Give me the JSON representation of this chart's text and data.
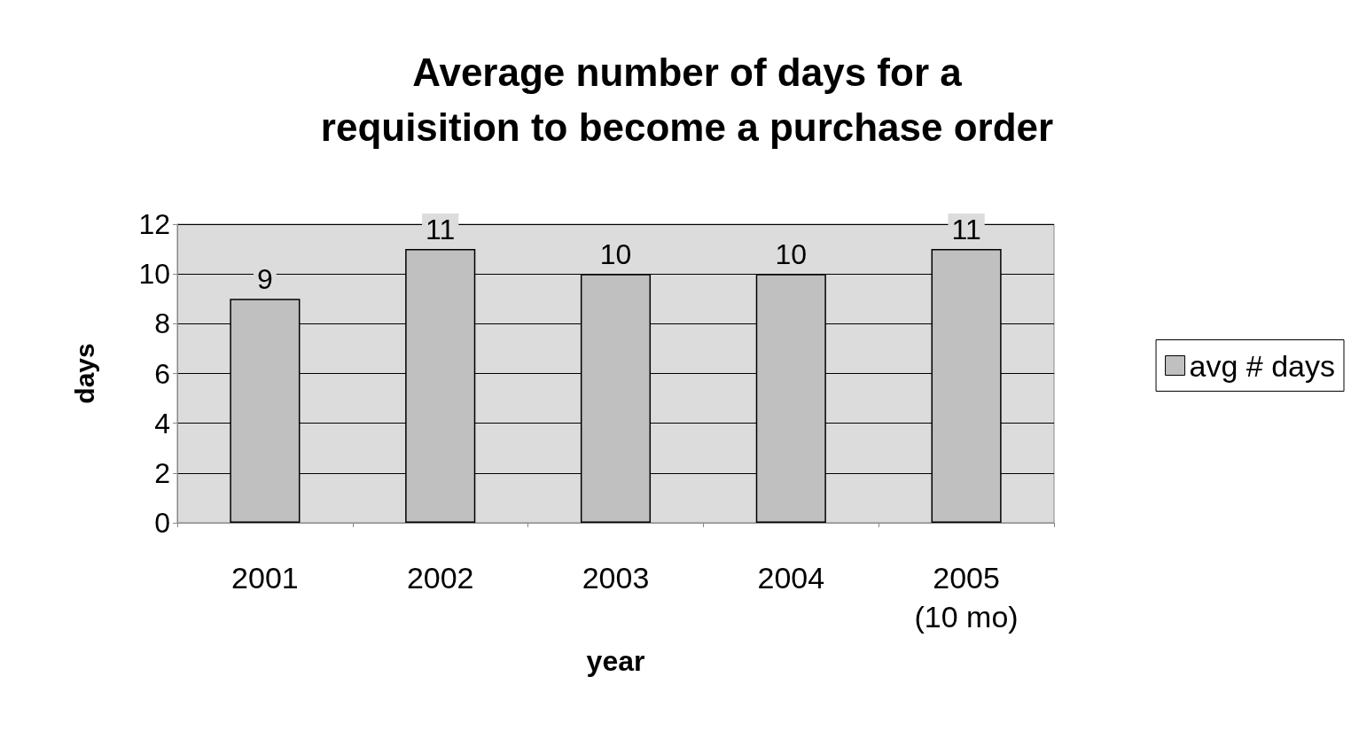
{
  "chart_data": {
    "type": "bar",
    "title": "Average number of days for a\nrequisition to become a purchase order",
    "xlabel": "year",
    "ylabel": "days",
    "categories": [
      "2001",
      "2002",
      "2003",
      "2004",
      "2005\n(10 mo)"
    ],
    "series": [
      {
        "name": "avg # days",
        "color": "#c0c0c0",
        "values": [
          9,
          11,
          10,
          10,
          11
        ]
      }
    ],
    "ylim": [
      0,
      12
    ],
    "yticks": [
      0,
      2,
      4,
      6,
      8,
      10,
      12
    ],
    "grid": "y",
    "legend": "right",
    "data_labels": true
  }
}
